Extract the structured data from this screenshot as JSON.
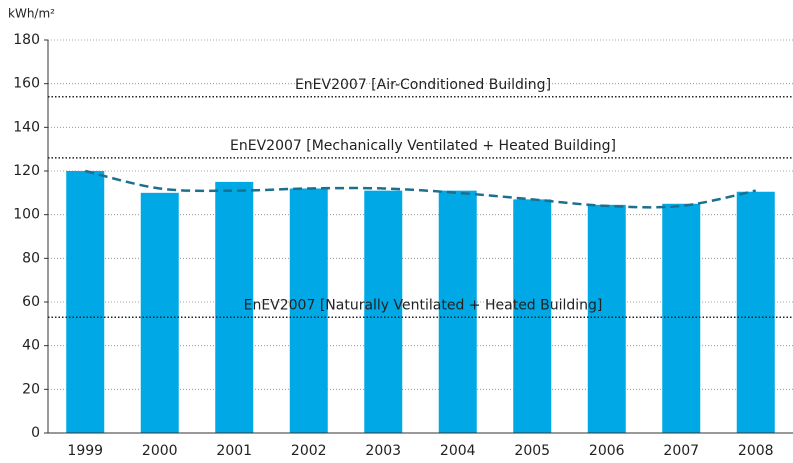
{
  "chart_data": {
    "type": "bar",
    "y_label": "kWh/m²",
    "categories": [
      "1999",
      "2000",
      "2001",
      "2002",
      "2003",
      "2004",
      "2005",
      "2006",
      "2007",
      "2008"
    ],
    "values": [
      120,
      110,
      115,
      112,
      111,
      111,
      107,
      104.5,
      105,
      110.5
    ],
    "color": "#00a9e6",
    "trend": {
      "values": [
        120,
        112,
        111,
        112,
        112,
        110,
        107,
        104,
        104,
        111
      ],
      "color": "#1d6f8e"
    },
    "reference_lines": [
      {
        "label": "EnEV2007 [Air-Conditioned Building]",
        "value": 154
      },
      {
        "label": "EnEV2007 [Mechanically Ventilated + Heated Building]",
        "value": 126
      },
      {
        "label": "EnEV2007 [Naturally Ventilated + Heated Building]",
        "value": 53
      }
    ],
    "ylim": [
      0,
      180
    ],
    "yticks": [
      0,
      20,
      40,
      60,
      80,
      100,
      120,
      140,
      160,
      180
    ],
    "grid": true
  }
}
